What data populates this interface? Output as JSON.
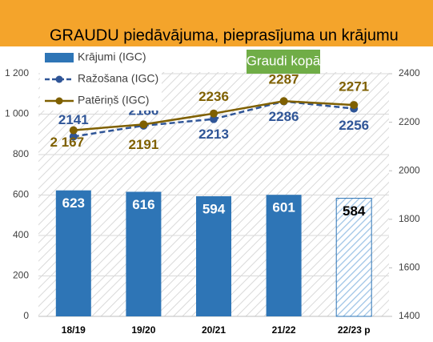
{
  "chart_data": {
    "type": "bar-line",
    "title": "GRAUDU piedāvājuma, pieprasījuma un krājumu",
    "annotation": "Graudi kopā",
    "categories": [
      "18/19",
      "19/20",
      "20/21",
      "21/22",
      "22/23 p"
    ],
    "series": [
      {
        "name": "Krājumi (IGC)",
        "type": "bar",
        "color": "#2e75b6",
        "values": [
          623,
          616,
          594,
          601,
          584
        ]
      },
      {
        "name": "Ražošana (IGC)",
        "type": "line",
        "axis": "y2",
        "color": "#2f5597",
        "dashed": true,
        "values": [
          2141,
          2186,
          2213,
          2286,
          2256
        ]
      },
      {
        "name": "Patēriņš (IGC)",
        "type": "line",
        "axis": "y2",
        "color": "#7f6000",
        "values": [
          2167,
          2191,
          2236,
          2287,
          2271
        ],
        "value_labels": [
          "2 167",
          "2191",
          "2236",
          "2287",
          "2271"
        ]
      }
    ],
    "ylim": [
      0,
      1200
    ],
    "yticks": [
      0,
      200,
      400,
      600,
      800,
      {
        "value": 1000,
        "label": "1 000"
      },
      {
        "value": 1200,
        "label": "1 200"
      }
    ],
    "y2lim": [
      1400,
      2400
    ],
    "y2ticks": [
      1400,
      1600,
      1800,
      2000,
      2200,
      2400
    ],
    "legend": "top-left"
  }
}
